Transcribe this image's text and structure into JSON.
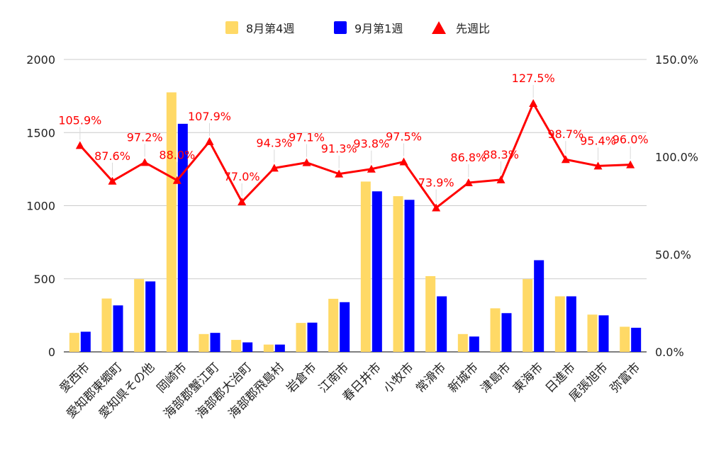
{
  "chart_data": {
    "type": "bar",
    "categories": [
      "愛西市",
      "愛知郡東郷町",
      "愛知県その他",
      "岡崎市",
      "海部郡蟹江町",
      "海部郡大治町",
      "海部郡飛島村",
      "岩倉市",
      "江南市",
      "春日井市",
      "小牧市",
      "常滑市",
      "新城市",
      "津島市",
      "東海市",
      "日進市",
      "尾張旭市",
      "弥富市"
    ],
    "series": [
      {
        "name": "8月第4週",
        "color": "#ffd966",
        "axis": "left",
        "values": [
          130,
          365,
          498,
          1775,
          122,
          82,
          50,
          198,
          363,
          1165,
          1065,
          518,
          122,
          298,
          498,
          380,
          255,
          172
        ]
      },
      {
        "name": "9月第1週",
        "color": "#0000ff",
        "axis": "left",
        "values": [
          138,
          318,
          482,
          1560,
          130,
          65,
          50,
          200,
          340,
          1098,
          1040,
          380,
          105,
          265,
          627,
          380,
          250,
          165
        ]
      }
    ],
    "line_series": {
      "name": "先週比",
      "color": "#ff0000",
      "axis": "right",
      "values": [
        105.9,
        87.6,
        97.2,
        88.0,
        107.9,
        77.0,
        94.3,
        97.1,
        91.3,
        93.8,
        97.5,
        73.9,
        86.8,
        88.3,
        127.5,
        98.7,
        95.4,
        96.0
      ],
      "labels": [
        "105.9%",
        "87.6%",
        "97.2%",
        "88.0%",
        "107.9%",
        "77.0%",
        "94.3%",
        "97.1%",
        "91.3%",
        "93.8%",
        "97.5%",
        "73.9%",
        "86.8%",
        "88.3%",
        "127.5%",
        "98.7%",
        "95.4%",
        "96.0%"
      ]
    },
    "left_axis": {
      "min": 0,
      "max": 2000,
      "ticks": [
        0,
        500,
        1000,
        1500,
        2000
      ],
      "tick_labels": [
        "0",
        "500",
        "1000",
        "1500",
        "2000"
      ]
    },
    "right_axis": {
      "min": 0,
      "max": 150,
      "ticks": [
        0,
        50,
        100,
        150
      ],
      "tick_labels": [
        "0.0%",
        "50.0%",
        "100.0%",
        "150.0%"
      ]
    },
    "grid": true,
    "legend_position": "top-center"
  }
}
